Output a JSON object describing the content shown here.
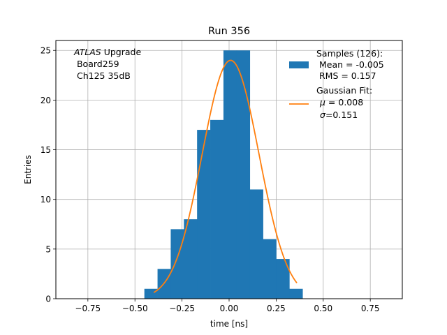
{
  "chart_data": {
    "type": "bar",
    "title": "Run 356",
    "xlabel": "time [ns]",
    "ylabel": "Entries",
    "xlim": [
      -0.92,
      0.92
    ],
    "ylim": [
      0,
      26
    ],
    "grid": true,
    "x_ticks": [
      -0.75,
      -0.5,
      -0.25,
      0.0,
      0.25,
      0.5,
      0.75
    ],
    "x_tick_labels": [
      "−0.75",
      "−0.50",
      "−0.25",
      "0.00",
      "0.25",
      "0.50",
      "0.75"
    ],
    "y_ticks": [
      0,
      5,
      10,
      15,
      20,
      25
    ],
    "y_tick_labels": [
      "0",
      "5",
      "10",
      "15",
      "20",
      "25"
    ],
    "histogram": {
      "bin_edges": [
        -0.45,
        -0.38,
        -0.31,
        -0.24,
        -0.17,
        -0.1,
        -0.03,
        0.04,
        0.11,
        0.18,
        0.25,
        0.32,
        0.39
      ],
      "counts": [
        1,
        3,
        7,
        8,
        17,
        18,
        25,
        25,
        11,
        6,
        4,
        1
      ],
      "color": "#1f77b4"
    },
    "fit": {
      "amplitude": 24,
      "mu": 0.008,
      "sigma": 0.151,
      "x_range": [
        -0.4,
        0.36
      ],
      "color": "#ff7f0e"
    },
    "annotation": {
      "italic": "ATLAS",
      "line1_rest": " Upgrade",
      "line2": " Board259",
      "line3": " Ch125 35dB"
    },
    "legend": {
      "position": "top-right",
      "samples": {
        "line1": "Samples (126):",
        "line2": " Mean = -0.005",
        "line3": " RMS = 0.157"
      },
      "fit": {
        "line1": "Gaussian Fit:",
        "mu_symbol": "μ",
        "mu_text": " = 0.008",
        "sigma_symbol": "σ",
        "sigma_text": "=0.151"
      }
    }
  }
}
